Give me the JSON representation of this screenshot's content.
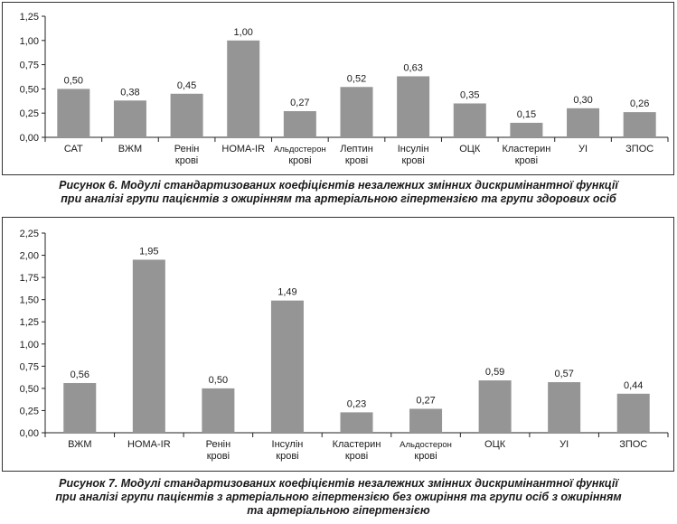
{
  "chart_data": [
    {
      "type": "bar",
      "categories": [
        [
          "САТ"
        ],
        [
          "ВЖМ"
        ],
        [
          "Ренін",
          "крові"
        ],
        [
          "HOMA-IR"
        ],
        [
          "Альдостерон",
          "крові"
        ],
        [
          "Лептин",
          "крові"
        ],
        [
          "Інсулін",
          "крові"
        ],
        [
          "ОЦК"
        ],
        [
          "Кластерин",
          "крові"
        ],
        [
          "УІ"
        ],
        [
          "ЗПОС"
        ]
      ],
      "values": [
        0.5,
        0.38,
        0.45,
        1.0,
        0.27,
        0.52,
        0.63,
        0.35,
        0.15,
        0.3,
        0.26
      ],
      "value_labels": [
        "0,50",
        "0,38",
        "0,45",
        "1,00",
        "0,27",
        "0,52",
        "0,63",
        "0,35",
        "0,15",
        "0,30",
        "0,26"
      ],
      "yticks": [
        "0,00",
        "0,25",
        "0,50",
        "0,75",
        "1,00",
        "1,25"
      ],
      "ylim": [
        0,
        1.25
      ],
      "grid": false,
      "bar_color": "#959595"
    },
    {
      "type": "bar",
      "categories": [
        [
          "ВЖМ"
        ],
        [
          "HOMA-IR"
        ],
        [
          "Ренін",
          "крові"
        ],
        [
          "Інсулін",
          "крові"
        ],
        [
          "Кластерин",
          "крові"
        ],
        [
          "Альдостерон",
          "крові"
        ],
        [
          "ОЦК"
        ],
        [
          "УІ"
        ],
        [
          "ЗПОС"
        ]
      ],
      "values": [
        0.56,
        1.95,
        0.5,
        1.49,
        0.23,
        0.27,
        0.59,
        0.57,
        0.44
      ],
      "value_labels": [
        "0,56",
        "1,95",
        "0,50",
        "1,49",
        "0,23",
        "0,27",
        "0,59",
        "0,57",
        "0,44"
      ],
      "yticks": [
        "0,00",
        "0,25",
        "0,50",
        "0,75",
        "1,00",
        "1,25",
        "1,50",
        "1,75",
        "2,00",
        "2,25"
      ],
      "ylim": [
        0,
        2.25
      ],
      "grid": false,
      "bar_color": "#959595"
    }
  ],
  "captions": {
    "fig6_line1": "Рисунок 6.  Модулі стандартизованих коефіцієнтів незалежних змінних дискримінантної функції",
    "fig6_line2": "при аналізі групи пацієнтів з ожирінням та артеріальною гіпертензією та групи здорових осіб",
    "fig7_line1": "Рисунок 7.  Модулі стандартизованих коефіцієнтів незалежних змінних дискримінантної функції",
    "fig7_line2": "при аналізі групи пацієнтів з артеріальною гіпертензією без ожиріння та групи осіб з ожирінням",
    "fig7_line3": "та артеріальною гіпертензією"
  }
}
